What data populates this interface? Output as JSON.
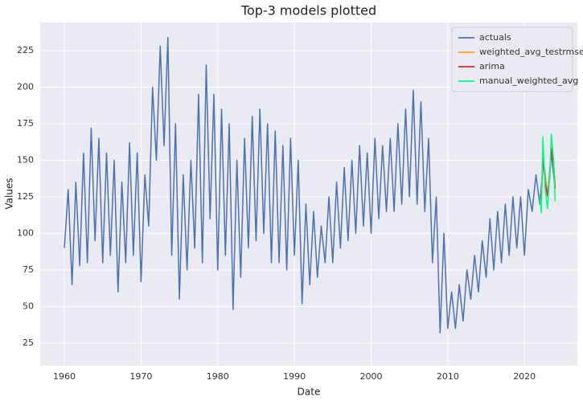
{
  "chart_data": {
    "type": "line",
    "title": "Top-3 models plotted",
    "x_label": "Date",
    "y_label": "Values",
    "xlim": [
      1956.85,
      2026.9
    ],
    "ylim": [
      9.6,
      244.2
    ],
    "xticks": [
      1960,
      1970,
      1980,
      1990,
      2000,
      2010,
      2020
    ],
    "yticks": [
      25,
      50,
      75,
      100,
      125,
      150,
      175,
      200,
      225
    ],
    "grid": true,
    "legend": "upper right",
    "series": [
      {
        "name": "actuals",
        "color": "#4c72b0",
        "x": [
          1960,
          1960.5,
          1961,
          1961.5,
          1962,
          1962.5,
          1963,
          1963.5,
          1964,
          1964.5,
          1965,
          1965.5,
          1966,
          1966.5,
          1967,
          1967.5,
          1968,
          1968.5,
          1969,
          1969.5,
          1970,
          1970.5,
          1971,
          1971.5,
          1972,
          1972.5,
          1973,
          1973.5,
          1974,
          1974.5,
          1975,
          1975.5,
          1976,
          1976.5,
          1977,
          1977.5,
          1978,
          1978.5,
          1979,
          1979.5,
          1980,
          1980.5,
          1981,
          1981.5,
          1982,
          1982.5,
          1983,
          1983.5,
          1984,
          1984.5,
          1985,
          1985.5,
          1986,
          1986.5,
          1987,
          1987.5,
          1988,
          1988.5,
          1989,
          1989.5,
          1990,
          1990.5,
          1991,
          1991.5,
          1992,
          1992.5,
          1993,
          1993.5,
          1994,
          1994.5,
          1995,
          1995.5,
          1996,
          1996.5,
          1997,
          1997.5,
          1998,
          1998.5,
          1999,
          1999.5,
          2000,
          2000.5,
          2001,
          2001.5,
          2002,
          2002.5,
          2003,
          2003.5,
          2004,
          2004.5,
          2005,
          2005.5,
          2006,
          2006.5,
          2007,
          2007.5,
          2008,
          2008.5,
          2009,
          2009.5,
          2010,
          2010.5,
          2011,
          2011.5,
          2012,
          2012.5,
          2013,
          2013.5,
          2014,
          2014.5,
          2015,
          2015.5,
          2016,
          2016.5,
          2017,
          2017.5,
          2018,
          2018.5,
          2019,
          2019.5,
          2020,
          2020.5,
          2021,
          2021.5,
          2022,
          2022.5,
          2023,
          2023.5,
          2024
        ],
        "values": [
          90,
          130,
          65,
          135,
          78,
          155,
          80,
          172,
          95,
          165,
          80,
          155,
          85,
          150,
          60,
          135,
          80,
          162,
          85,
          155,
          67,
          140,
          105,
          200,
          150,
          228,
          160,
          234,
          85,
          175,
          55,
          140,
          75,
          150,
          90,
          195,
          80,
          215,
          110,
          195,
          75,
          185,
          85,
          175,
          48,
          150,
          70,
          165,
          90,
          180,
          95,
          185,
          100,
          175,
          80,
          170,
          80,
          160,
          75,
          165,
          85,
          150,
          52,
          120,
          65,
          115,
          70,
          105,
          80,
          125,
          80,
          135,
          90,
          145,
          95,
          150,
          100,
          160,
          105,
          155,
          100,
          165,
          110,
          160,
          115,
          165,
          115,
          175,
          120,
          185,
          125,
          198,
          120,
          190,
          115,
          165,
          80,
          125,
          32,
          100,
          35,
          60,
          35,
          65,
          40,
          75,
          55,
          85,
          60,
          95,
          70,
          110,
          75,
          115,
          80,
          120,
          85,
          125,
          90,
          125,
          85,
          130,
          115,
          140,
          120,
          150,
          125,
          155,
          130
        ]
      },
      {
        "name": "weighted_avg_testrmse",
        "color": "#ff9f1c",
        "x": [
          2022,
          2022.2,
          2022.4,
          2022.7,
          2023,
          2023.3,
          2023.5,
          2023.8,
          2024
        ],
        "values": [
          125,
          122,
          155,
          138,
          125,
          140,
          160,
          150,
          130
        ]
      },
      {
        "name": "arima",
        "color": "#d62728",
        "x": [
          2022,
          2022.2,
          2022.4,
          2022.7,
          2023,
          2023.3,
          2023.5,
          2023.8,
          2024
        ],
        "values": [
          125,
          123,
          152,
          135,
          126,
          138,
          158,
          148,
          131
        ]
      },
      {
        "name": "manual_weighted_avg",
        "color": "#00ff7f",
        "x": [
          2022,
          2022.2,
          2022.4,
          2022.7,
          2023,
          2023.3,
          2023.5,
          2023.8,
          2024
        ],
        "values": [
          125,
          114,
          166,
          130,
          117,
          140,
          168,
          150,
          122
        ]
      }
    ]
  }
}
